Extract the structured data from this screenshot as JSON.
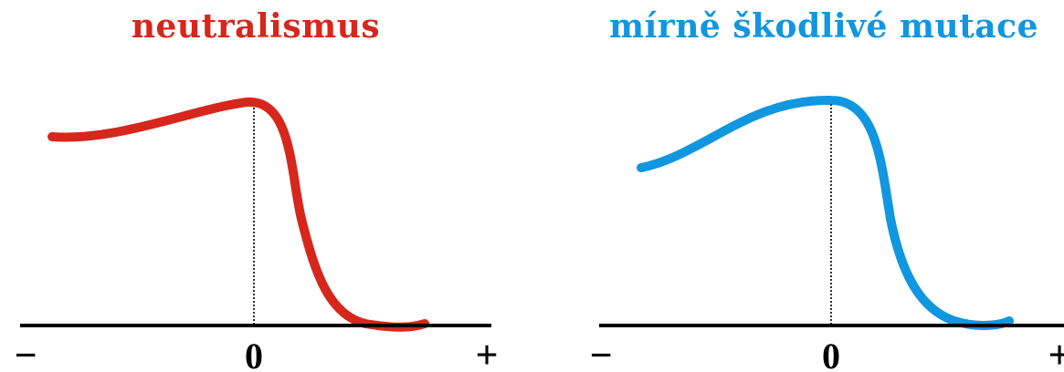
{
  "panels": [
    {
      "title": "neutralismus",
      "color": "#d7261c",
      "tick_labels": {
        "minus": "−",
        "zero": "0",
        "plus": "+"
      }
    },
    {
      "title": "mírně škodlivé mutace",
      "color": "#1196e0",
      "tick_labels": {
        "minus": "−",
        "zero": "0",
        "plus": "+"
      }
    }
  ],
  "axis_color": "#000000",
  "reference_line_color": "#333333"
}
